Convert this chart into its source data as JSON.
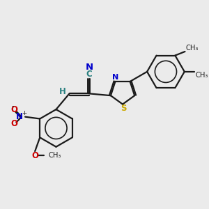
{
  "background_color": "#ebebeb",
  "bond_color": "#1a1a1a",
  "N_color": "#0000cc",
  "S_color": "#ccaa00",
  "O_color": "#cc0000",
  "C_color": "#2a8080",
  "H_color": "#2a8080",
  "figsize": [
    3.0,
    3.0
  ],
  "dpi": 100,
  "xlim": [
    0,
    10
  ],
  "ylim": [
    0,
    10
  ]
}
